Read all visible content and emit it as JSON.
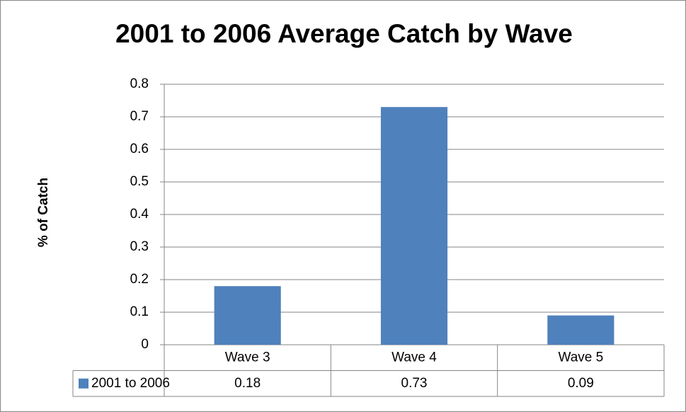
{
  "chart_data": {
    "type": "bar",
    "title": "2001 to 2006 Average Catch by Wave",
    "y_label": "% of Catch",
    "categories": [
      "Wave 3",
      "Wave 4",
      "Wave 5"
    ],
    "series": [
      {
        "name": "2001 to 2006",
        "color": "#4f81bd",
        "values": [
          0.18,
          0.73,
          0.09
        ]
      }
    ],
    "ylim": [
      0,
      0.8
    ],
    "yticks": [
      0,
      0.1,
      0.2,
      0.3,
      0.4,
      0.5,
      0.6,
      0.7,
      0.8
    ],
    "grid": true,
    "data_table": true
  }
}
